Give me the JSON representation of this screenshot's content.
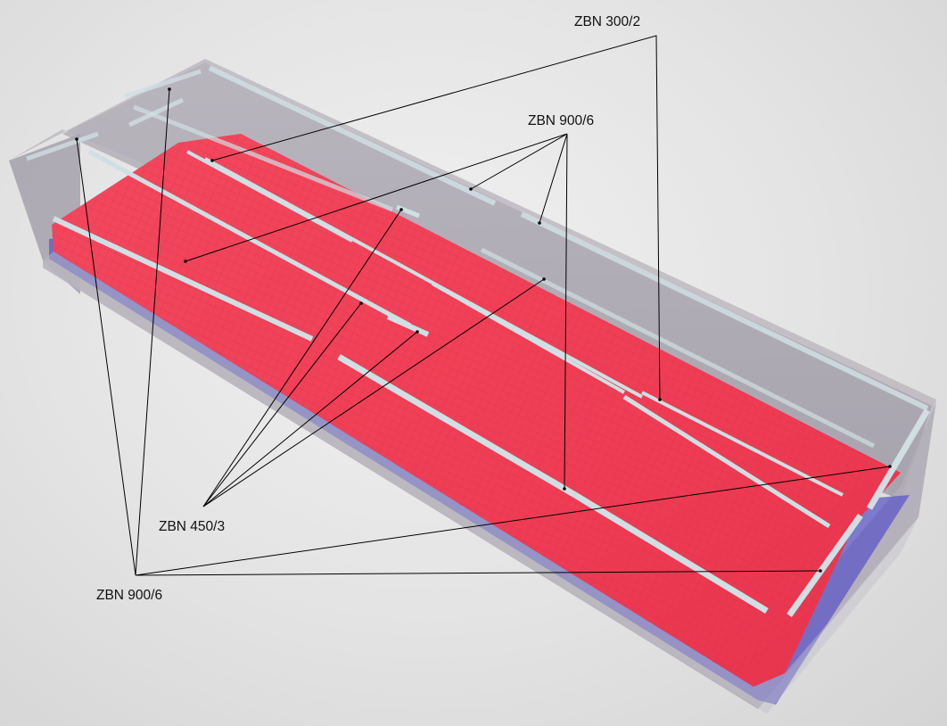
{
  "labels": {
    "zbn_300_2": "ZBN 300/2",
    "zbn_900_6_top": "ZBN 900/6",
    "zbn_450_3": "ZBN 450/3",
    "zbn_900_6_bottom": "ZBN 900/6"
  },
  "colors": {
    "container_glass": "#a7a3ad",
    "heated_zone": "#ef3f55",
    "lower_layer": "#5a55c8",
    "heating_strip": "#c9dbe0",
    "leader_line": "#000000"
  }
}
